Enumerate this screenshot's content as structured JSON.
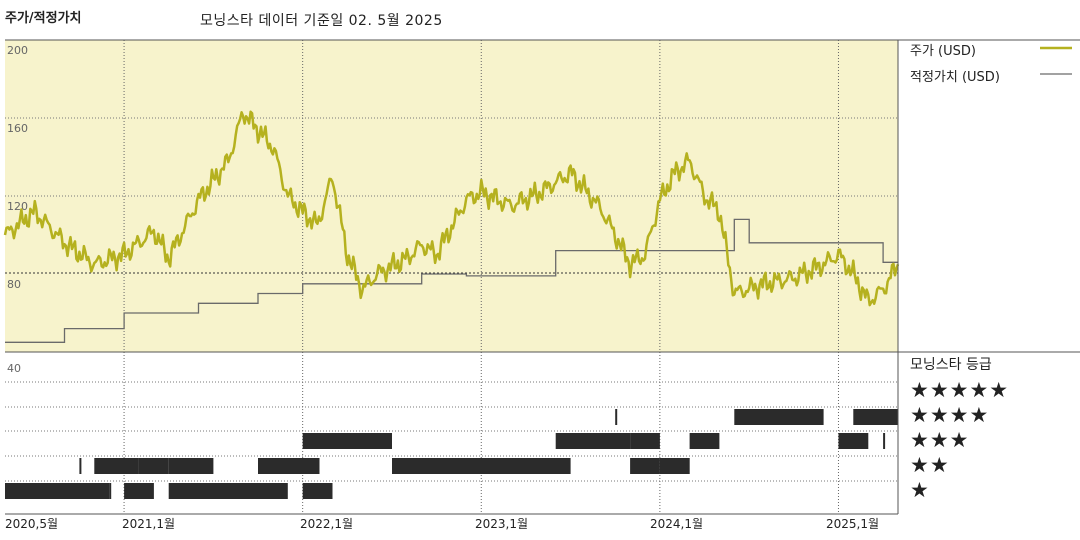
{
  "title": "주가/적정가치",
  "subtitle": "모닝스타 데이터 기준일 02. 5월 2025",
  "legend": {
    "price": "주가 (USD)",
    "fair_value": "적정가치 (USD)"
  },
  "rating_title": "모닝스타 등급",
  "colors": {
    "price": "#b5b11f",
    "fair_value": "#6a6a6a",
    "upper_bg": "#f7f3cc",
    "bars": "#2b2b2b"
  },
  "chart_data": {
    "type": "line",
    "x_axis": {
      "start": "2020-05",
      "end": "2025-05",
      "ticks": [
        "2020,5월",
        "2021,1월",
        "2022,1월",
        "2023,1월",
        "2024,1월",
        "2025,1월"
      ]
    },
    "y_axis": {
      "ylim": [
        40,
        200
      ],
      "ticks": [
        "200",
        "160",
        "120",
        "80",
        "40"
      ],
      "reference_line": 80
    },
    "series": [
      {
        "name": "주가 (USD)",
        "x": [
          "2020-05",
          "2020-07",
          "2020-09",
          "2020-11",
          "2021-01",
          "2021-03",
          "2021-04",
          "2021-06",
          "2021-08",
          "2021-09",
          "2021-11",
          "2021-12",
          "2022-01",
          "2022-02",
          "2022-03",
          "2022-04",
          "2022-05",
          "2022-06",
          "2022-08",
          "2022-09",
          "2022-10",
          "2022-12",
          "2023-01",
          "2023-03",
          "2023-05",
          "2023-07",
          "2023-09",
          "2023-10",
          "2023-11",
          "2023-12",
          "2024-01",
          "2024-02",
          "2024-03",
          "2024-04",
          "2024-05",
          "2024-06",
          "2024-08",
          "2024-10",
          "2024-12",
          "2025-01",
          "2025-02",
          "2025-03",
          "2025-04",
          "2025-05"
        ],
        "values": [
          100,
          112,
          96,
          85,
          90,
          102,
          88,
          118,
          138,
          163,
          145,
          120,
          112,
          105,
          130,
          90,
          72,
          80,
          88,
          95,
          90,
          118,
          122,
          115,
          122,
          132,
          114,
          100,
          85,
          90,
          118,
          132,
          138,
          120,
          112,
          70,
          75,
          78,
          85,
          90,
          80,
          66,
          72,
          85
        ]
      },
      {
        "name": "적정가치 (USD)",
        "x": [
          "2020-05",
          "2020-09",
          "2021-01",
          "2021-06",
          "2021-10",
          "2022-01",
          "2022-09",
          "2022-12",
          "2023-06",
          "2023-08",
          "2024-06",
          "2024-07",
          "2025-03",
          "2025-04",
          "2025-05"
        ],
        "values": [
          45,
          52,
          60,
          65,
          70,
          75,
          80,
          79,
          92,
          92,
          108,
          96,
          96,
          86,
          86
        ]
      }
    ],
    "rating_bars": [
      {
        "stars": 5,
        "segments": []
      },
      {
        "stars": 4,
        "segments": [
          [
            "2023-10",
            "2023-10"
          ],
          [
            "2024-06",
            "2024-11"
          ],
          [
            "2025-02",
            "2025-04"
          ]
        ]
      },
      {
        "stars": 3,
        "segments": [
          [
            "2022-01",
            "2022-06"
          ],
          [
            "2023-06",
            "2023-10"
          ],
          [
            "2023-11",
            "2023-12"
          ],
          [
            "2024-03",
            "2024-04"
          ],
          [
            "2025-01",
            "2025-02"
          ],
          [
            "2025-04",
            "2025-04"
          ]
        ]
      },
      {
        "stars": 2,
        "segments": [
          [
            "2020-10",
            "2020-10"
          ],
          [
            "2020-11",
            "2021-01"
          ],
          [
            "2021-02",
            "2021-03"
          ],
          [
            "2021-04",
            "2021-06"
          ],
          [
            "2021-10",
            "2022-01"
          ],
          [
            "2022-02",
            "2022-02"
          ],
          [
            "2022-07",
            "2023-06"
          ],
          [
            "2023-11",
            "2023-12"
          ],
          [
            "2024-01",
            "2024-02"
          ]
        ]
      },
      {
        "stars": 1,
        "segments": [
          [
            "2020-05",
            "2020-11"
          ],
          [
            "2020-12",
            "2020-12"
          ],
          [
            "2021-01",
            "2021-02"
          ],
          [
            "2021-04",
            "2021-05"
          ],
          [
            "2021-06",
            "2021-11"
          ],
          [
            "2022-01",
            "2022-02"
          ]
        ]
      }
    ]
  },
  "star_rows": [
    "★★★★★",
    "★★★★",
    "★★★",
    "★★",
    "★"
  ]
}
